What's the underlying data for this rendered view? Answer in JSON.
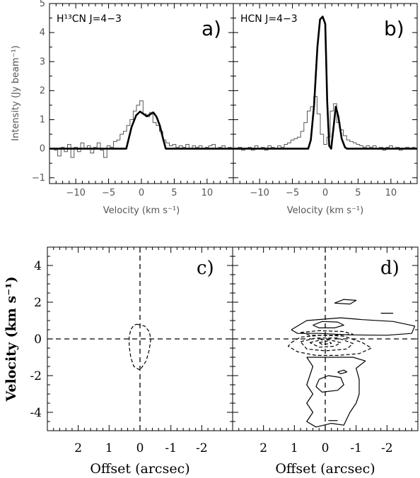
{
  "chart_data": [
    {
      "type": "line",
      "panel_label": "a)",
      "title": "H¹³CN J=4−3",
      "xlabel": "Velocity (km s⁻¹)",
      "ylabel": "Intensity (Jy beam⁻¹)",
      "xlim": [
        -14,
        14
      ],
      "ylim": [
        -1.2,
        5
      ],
      "xticks": [
        -10,
        -5,
        0,
        5,
        10
      ],
      "yticks": [
        -1,
        0,
        1,
        2,
        3,
        4,
        5
      ],
      "series": [
        {
          "style": "histogram",
          "x": [
            -13.5,
            -13,
            -12.5,
            -12,
            -11.5,
            -11,
            -10.5,
            -10,
            -9.5,
            -9,
            -8.5,
            -8,
            -7.5,
            -7,
            -6.5,
            -6,
            -5.5,
            -5,
            -4.5,
            -4,
            -3.5,
            -3,
            -2.5,
            -2,
            -1.5,
            -1,
            -0.5,
            0,
            0.5,
            1,
            1.5,
            2,
            2.5,
            3,
            3.5,
            4,
            4.5,
            5,
            5.5,
            6,
            6.5,
            7,
            7.5,
            8,
            8.5,
            9,
            9.5,
            10,
            10.5,
            11,
            11.5,
            12,
            12.5,
            13,
            13.5
          ],
          "y": [
            0,
            -0.05,
            -0.25,
            0.05,
            -0.1,
            0.15,
            -0.3,
            0.05,
            -0.1,
            0.2,
            0,
            0.1,
            -0.15,
            0.05,
            0.2,
            -0.05,
            -0.3,
            0.1,
            0.05,
            0.25,
            0.3,
            0.5,
            0.6,
            0.8,
            1.0,
            1.3,
            1.5,
            1.65,
            1.2,
            1.1,
            1.25,
            0.9,
            0.8,
            0.6,
            0.3,
            0.2,
            0.1,
            0.15,
            0.05,
            0.1,
            0.05,
            0.15,
            0,
            0.1,
            0.05,
            0.1,
            0,
            0.05,
            0.1,
            0.15,
            0,
            0.05,
            0.1,
            0,
            0.05
          ]
        },
        {
          "style": "model",
          "x": [
            -14,
            -2.3,
            -1.5,
            -0.8,
            -0.2,
            0.3,
            0.8,
            1.3,
            1.8,
            2.3,
            2.8,
            3.3,
            3.7,
            14
          ],
          "y": [
            0,
            0,
            0.75,
            1.15,
            1.28,
            1.2,
            1.12,
            1.18,
            1.25,
            1.1,
            0.8,
            0.35,
            0,
            0
          ]
        }
      ]
    },
    {
      "type": "line",
      "panel_label": "b)",
      "title": "HCN J=4−3",
      "xlabel": "Velocity (km s⁻¹)",
      "xlim": [
        -14,
        14
      ],
      "ylim": [
        -1.2,
        5
      ],
      "xticks": [
        -10,
        -5,
        0,
        5,
        10
      ],
      "series": [
        {
          "style": "histogram",
          "x": [
            -13.5,
            -13,
            -12.5,
            -12,
            -11.5,
            -11,
            -10.5,
            -10,
            -9.5,
            -9,
            -8.5,
            -8,
            -7.5,
            -7,
            -6.5,
            -6,
            -5.5,
            -5,
            -4.5,
            -4,
            -3.5,
            -3,
            -2.5,
            -2,
            -1.5,
            -1,
            -0.5,
            0,
            0.5,
            1,
            1.5,
            2,
            2.5,
            3,
            3.5,
            4,
            4.5,
            5,
            5.5,
            6,
            6.5,
            7,
            7.5,
            8,
            8.5,
            9,
            9.5,
            10,
            10.5,
            11,
            11.5,
            12,
            12.5,
            13,
            13.5
          ],
          "y": [
            0,
            0.05,
            -0.05,
            0,
            0.05,
            -0.05,
            0.1,
            0,
            0.05,
            -0.05,
            0.1,
            0.05,
            0,
            0.1,
            0.05,
            0.15,
            0.2,
            0.3,
            0.35,
            0.4,
            0.6,
            0.9,
            1.3,
            1.45,
            1.8,
            1.2,
            0.5,
            0.15,
            0.4,
            1.3,
            1.55,
            0.9,
            0.65,
            0.45,
            0.3,
            0.25,
            0.2,
            0.15,
            0.1,
            0.05,
            0.1,
            0.05,
            0.1,
            0,
            0.05,
            -0.05,
            0.05,
            0.1,
            0,
            0.05,
            -0.05,
            0,
            0.05,
            0,
            0.05
          ]
        },
        {
          "style": "model",
          "x": [
            -14,
            -2.6,
            -2.2,
            -1.7,
            -1.2,
            -0.8,
            -0.4,
            0,
            0.3,
            0.6,
            0.9,
            1.2,
            1.6,
            2.0,
            2.5,
            3.0,
            3.3,
            14
          ],
          "y": [
            0,
            0,
            0.3,
            1.5,
            3.5,
            4.45,
            4.55,
            4.3,
            1.6,
            0.1,
            0.0,
            0.6,
            1.45,
            1.1,
            0.35,
            0.05,
            0,
            0
          ]
        }
      ]
    },
    {
      "type": "contour",
      "panel_label": "c)",
      "xlabel": "Offset (arcsec)",
      "ylabel": "Velocity (km s⁻¹)",
      "xlim": [
        3,
        -3
      ],
      "ylim": [
        -5,
        5
      ],
      "xticks": [
        2,
        1,
        0,
        -1,
        -2
      ],
      "yticks": [
        -4,
        -2,
        0,
        2,
        4
      ],
      "reference_lines": {
        "x": 0,
        "y": 0,
        "style": "dashed"
      },
      "contours": [
        {
          "sign": "negative",
          "points": [
            [
              0.1,
              0.8
            ],
            [
              -0.15,
              0.7
            ],
            [
              -0.3,
              0.4
            ],
            [
              -0.35,
              0
            ],
            [
              -0.3,
              -0.6
            ],
            [
              -0.2,
              -1.2
            ],
            [
              0,
              -1.7
            ],
            [
              0.2,
              -1.5
            ],
            [
              0.3,
              -1.0
            ],
            [
              0.35,
              -0.4
            ],
            [
              0.35,
              0.1
            ],
            [
              0.3,
              0.5
            ],
            [
              0.2,
              0.75
            ],
            [
              0.1,
              0.8
            ]
          ]
        }
      ]
    },
    {
      "type": "contour",
      "panel_label": "d)",
      "xlabel": "Offset (arcsec)",
      "xlim": [
        3,
        -3
      ],
      "ylim": [
        -5,
        5
      ],
      "xticks": [
        2,
        1,
        0,
        -1,
        -2
      ],
      "reference_lines": {
        "x": 0,
        "y": 0,
        "style": "dashed"
      },
      "contours": [
        {
          "sign": "positive",
          "points": [
            [
              1.1,
              0.5
            ],
            [
              0.6,
              1.0
            ],
            [
              -0.5,
              1.15
            ],
            [
              -1.2,
              1.05
            ],
            [
              -2.2,
              0.95
            ],
            [
              -2.9,
              0.7
            ],
            [
              -2.8,
              0.3
            ],
            [
              -2.0,
              0.2
            ],
            [
              -0.8,
              0.22
            ],
            [
              0.2,
              0.3
            ],
            [
              0.9,
              0.3
            ],
            [
              1.1,
              0.5
            ]
          ]
        },
        {
          "sign": "positive",
          "points": [
            [
              0.4,
              0.75
            ],
            [
              0.1,
              0.95
            ],
            [
              -0.4,
              0.92
            ],
            [
              -0.6,
              0.75
            ],
            [
              -0.3,
              0.6
            ],
            [
              0.2,
              0.6
            ],
            [
              0.4,
              0.75
            ]
          ]
        },
        {
          "sign": "positive",
          "points": [
            [
              -0.3,
              1.95
            ],
            [
              -0.6,
              2.15
            ],
            [
              -1.0,
              2.1
            ],
            [
              -0.8,
              1.9
            ],
            [
              -0.3,
              1.95
            ]
          ]
        },
        {
          "sign": "positive",
          "points": [
            [
              -1.8,
              1.4
            ],
            [
              -2.2,
              1.4
            ]
          ]
        },
        {
          "sign": "positive",
          "points": [
            [
              0.6,
              -1.0
            ],
            [
              0.4,
              -1.5
            ],
            [
              0.6,
              -2.5
            ],
            [
              0.4,
              -3.0
            ],
            [
              0.6,
              -3.5
            ],
            [
              0.4,
              -4.0
            ],
            [
              0.6,
              -4.5
            ],
            [
              0.3,
              -4.8
            ],
            [
              -0.2,
              -4.6
            ],
            [
              -0.6,
              -4.7
            ],
            [
              -0.8,
              -4.0
            ],
            [
              -1.0,
              -3.5
            ],
            [
              -1.1,
              -3.0
            ],
            [
              -1.1,
              -2.2
            ],
            [
              -1.0,
              -1.6
            ],
            [
              -1.3,
              -1.2
            ],
            [
              -0.9,
              -1.0
            ],
            [
              -0.2,
              -1.0
            ],
            [
              0.6,
              -1.0
            ]
          ]
        },
        {
          "sign": "positive",
          "points": [
            [
              0.2,
              -2.2
            ],
            [
              -0.1,
              -2.0
            ],
            [
              -0.5,
              -2.1
            ],
            [
              -0.6,
              -2.5
            ],
            [
              -0.4,
              -2.8
            ],
            [
              0.1,
              -2.9
            ],
            [
              0.3,
              -2.6
            ],
            [
              0.2,
              -2.2
            ]
          ]
        },
        {
          "sign": "positive",
          "points": [
            [
              -0.4,
              -1.8
            ],
            [
              -0.6,
              -1.7
            ],
            [
              -0.7,
              -1.8
            ],
            [
              -0.5,
              -1.9
            ],
            [
              -0.4,
              -1.8
            ]
          ]
        },
        {
          "sign": "positive",
          "points": [
            [
              -0.1,
              -4.45
            ],
            [
              -0.4,
              -4.45
            ]
          ]
        },
        {
          "sign": "negative",
          "points": [
            [
              1.1,
              -0.2
            ],
            [
              0.8,
              0.1
            ],
            [
              0.1,
              0.2
            ],
            [
              -0.6,
              0.15
            ],
            [
              -1.2,
              -0.2
            ],
            [
              -1.5,
              -0.5
            ],
            [
              -1.1,
              -0.8
            ],
            [
              -0.4,
              -0.9
            ],
            [
              0.3,
              -0.9
            ],
            [
              0.9,
              -0.7
            ],
            [
              1.2,
              -0.4
            ],
            [
              1.1,
              -0.2
            ]
          ]
        },
        {
          "sign": "negative",
          "points": [
            [
              0.8,
              -0.15
            ],
            [
              0.3,
              0.05
            ],
            [
              -0.4,
              0.05
            ],
            [
              -0.9,
              -0.25
            ],
            [
              -0.7,
              -0.55
            ],
            [
              0.0,
              -0.65
            ],
            [
              0.6,
              -0.55
            ],
            [
              0.8,
              -0.15
            ]
          ]
        },
        {
          "sign": "negative",
          "points": [
            [
              0.5,
              -0.2
            ],
            [
              0.0,
              0.0
            ],
            [
              -0.5,
              -0.2
            ],
            [
              -0.3,
              -0.4
            ],
            [
              0.2,
              -0.45
            ],
            [
              0.5,
              -0.2
            ]
          ]
        },
        {
          "sign": "negative",
          "points": [
            [
              0.2,
              -0.2
            ],
            [
              -0.1,
              -0.1
            ],
            [
              -0.2,
              -0.25
            ],
            [
              0.1,
              -0.3
            ],
            [
              0.2,
              -0.2
            ]
          ]
        },
        {
          "sign": "negative",
          "points": [
            [
              0.8,
              0.35
            ],
            [
              0.2,
              0.45
            ],
            [
              -0.6,
              0.4
            ],
            [
              -0.9,
              0.25
            ],
            [
              -0.3,
              0.2
            ],
            [
              0.5,
              0.2
            ],
            [
              0.8,
              0.35
            ]
          ]
        }
      ]
    }
  ]
}
